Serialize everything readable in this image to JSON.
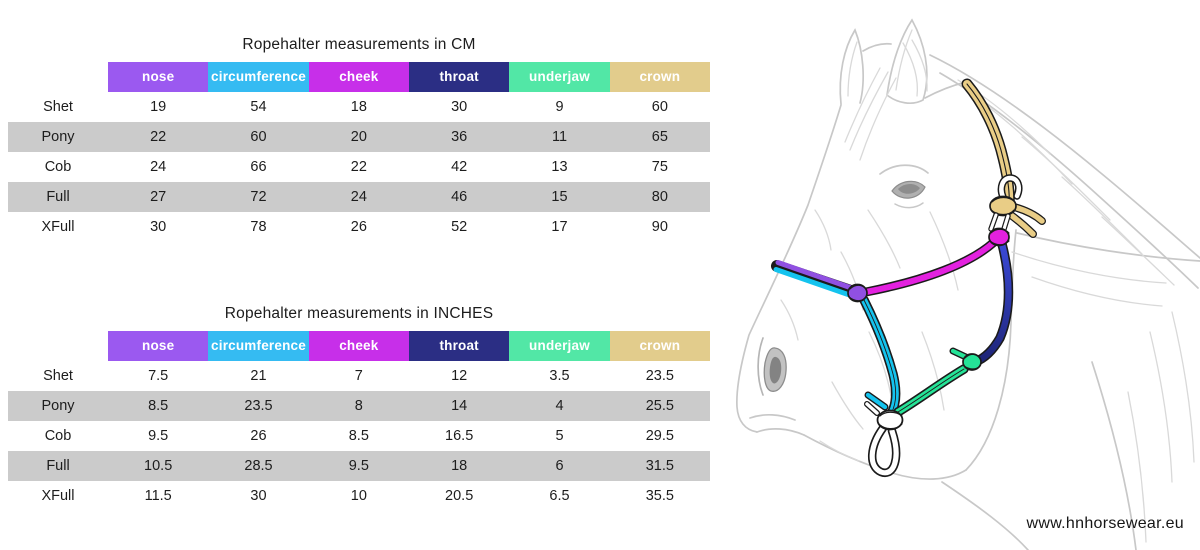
{
  "tables": [
    {
      "title": "Ropehalter measurements in CM",
      "unit": "CM",
      "columns": [
        "nose",
        "circumference",
        "cheek",
        "throat",
        "underjaw",
        "crown"
      ],
      "rows": [
        {
          "label": "Shet",
          "values": [
            "19",
            "54",
            "18",
            "30",
            "9",
            "60"
          ]
        },
        {
          "label": "Pony",
          "values": [
            "22",
            "60",
            "20",
            "36",
            "11",
            "65"
          ]
        },
        {
          "label": "Cob",
          "values": [
            "24",
            "66",
            "22",
            "42",
            "13",
            "75"
          ]
        },
        {
          "label": "Full",
          "values": [
            "27",
            "72",
            "24",
            "46",
            "15",
            "80"
          ]
        },
        {
          "label": "XFull",
          "values": [
            "30",
            "78",
            "26",
            "52",
            "17",
            "90"
          ]
        }
      ]
    },
    {
      "title": "Ropehalter measurements in INCHES",
      "unit": "INCHES",
      "columns": [
        "nose",
        "circumference",
        "cheek",
        "throat",
        "underjaw",
        "crown"
      ],
      "rows": [
        {
          "label": "Shet",
          "values": [
            "7.5",
            "21",
            "7",
            "12",
            "3.5",
            "23.5"
          ]
        },
        {
          "label": "Pony",
          "values": [
            "8.5",
            "23.5",
            "8",
            "14",
            "4",
            "25.5"
          ]
        },
        {
          "label": "Cob",
          "values": [
            "9.5",
            "26",
            "8.5",
            "16.5",
            "5",
            "29.5"
          ]
        },
        {
          "label": "Full",
          "values": [
            "10.5",
            "28.5",
            "9.5",
            "18",
            "6",
            "31.5"
          ]
        },
        {
          "label": "XFull",
          "values": [
            "11.5",
            "30",
            "10",
            "20.5",
            "6.5",
            "35.5"
          ]
        }
      ]
    }
  ],
  "column_colors": {
    "nose": "#9B59F0",
    "circumference": "#35BBF2",
    "cheek": "#C72FE9",
    "throat": "#2B2E84",
    "underjaw": "#52E7A6",
    "crown": "#E2CC8C"
  },
  "stripe_color": "#CBCBCB",
  "illustration": {
    "description": "pencil sketch of horse head wearing a multicolored rope halter",
    "rope_colors": {
      "crown": "#E9CD86",
      "cheek": "#E321DF",
      "throat_top": "#3A49D6",
      "throat_bottom": "#1D2373",
      "noseband_purple": "#9050E2",
      "noseband_cyan": "#14C3EE",
      "underjaw": "#25E397",
      "tie": "#FFFFFF"
    }
  },
  "footer": {
    "website": "www.hnhorsewear.eu"
  }
}
